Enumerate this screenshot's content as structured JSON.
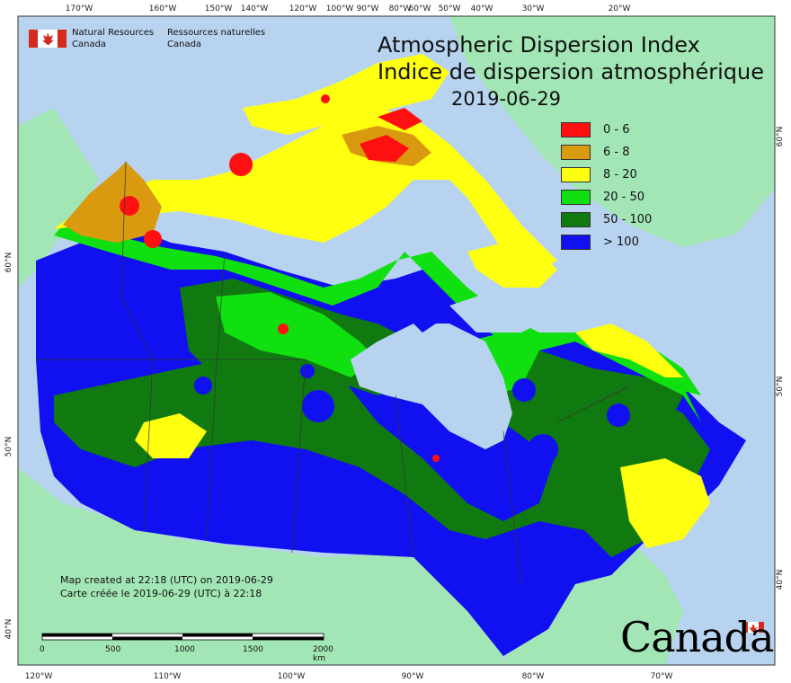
{
  "title": {
    "en": "Atmospheric Dispersion Index",
    "fr": "Indice de dispersion atmosphérique",
    "date": "2019-06-29"
  },
  "agency": {
    "en_line1": "Natural Resources",
    "en_line2": "Canada",
    "fr_line1": "Ressources naturelles",
    "fr_line2": "Canada"
  },
  "legend": [
    {
      "label": "0 - 6",
      "color": "#ff1010"
    },
    {
      "label": "6 - 8",
      "color": "#d99a10"
    },
    {
      "label": "8 - 20",
      "color": "#ffff10"
    },
    {
      "label": "20 - 50",
      "color": "#10e010"
    },
    {
      "label": "50 - 100",
      "color": "#107a10"
    },
    {
      "label": "> 100",
      "color": "#1010f0"
    }
  ],
  "created": {
    "en": "Map created at 22:18 (UTC) on 2019-06-29",
    "fr": "Carte créée le 2019-06-29 (UTC) à 22:18"
  },
  "scale_bar": {
    "labels": [
      "0",
      "500",
      "1000",
      "1500",
      "2000 km"
    ]
  },
  "wordmark": "Canada",
  "graticule": {
    "top": [
      "170°W",
      "160°W",
      "150°W",
      "140°W",
      "120°W",
      "100°W",
      "90°W",
      "80°W",
      "60°W",
      "50°W",
      "40°W",
      "30°W",
      "20°W"
    ],
    "bottom": [
      "120°W",
      "110°W",
      "100°W",
      "90°W",
      "80°W",
      "70°W"
    ],
    "left": [
      "60°N",
      "50°N",
      "40°N"
    ],
    "right": [
      "60°N",
      "50°N",
      "40°N"
    ]
  },
  "colors": {
    "ocean": "#b7d3f0",
    "land_outside": "#a3e6b5",
    "border": "#333333"
  }
}
